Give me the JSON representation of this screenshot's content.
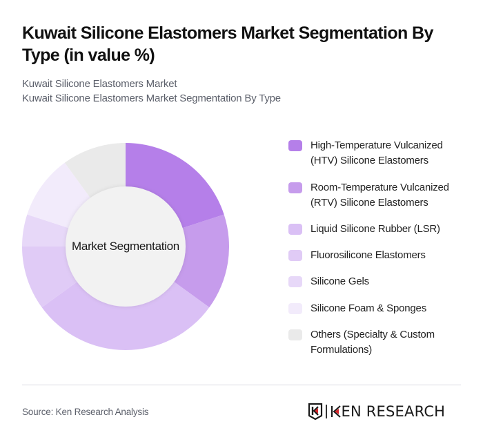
{
  "header": {
    "title": "Kuwait Silicone Elastomers Market Segmentation By Type (in value %)",
    "subtitle_line1": "Kuwait Silicone Elastomers Market",
    "subtitle_line2": "Kuwait Silicone Elastomers Market Segmentation By Type"
  },
  "chart": {
    "center_label": "Market Segmentation"
  },
  "legend": {
    "items": [
      {
        "label": "High-Temperature Vulcanized (HTV) Silicone Elastomers",
        "color": "#B57FE9"
      },
      {
        "label": "Room-Temperature Vulcanized (RTV) Silicone Elastomers",
        "color": "#C69CEC"
      },
      {
        "label": "Liquid Silicone Rubber (LSR)",
        "color": "#DAC0F5"
      },
      {
        "label": "Fluorosilicone Elastomers",
        "color": "#E0CBF6"
      },
      {
        "label": "Silicone Gels",
        "color": "#E7D8F8"
      },
      {
        "label": "Silicone Foam & Sponges",
        "color": "#F2EBFB"
      },
      {
        "label": "Others (Specialty & Custom Formulations)",
        "color": "#EAEAEA"
      }
    ]
  },
  "footer": {
    "source": "Source: Ken Research Analysis",
    "logo_text": "KEN RESEARCH"
  },
  "chart_data": {
    "type": "pie",
    "subtype": "donut",
    "title": "Kuwait Silicone Elastomers Market Segmentation By Type (in value %)",
    "center_label": "Market Segmentation",
    "categories": [
      "High-Temperature Vulcanized (HTV) Silicone Elastomers",
      "Room-Temperature Vulcanized (RTV) Silicone Elastomers",
      "Liquid Silicone Rubber (LSR)",
      "Fluorosilicone Elastomers",
      "Silicone Gels",
      "Silicone Foam & Sponges",
      "Others (Specialty & Custom Formulations)"
    ],
    "values": [
      20,
      15,
      30,
      10,
      5,
      10,
      10
    ],
    "colors": [
      "#B57FE9",
      "#C69CEC",
      "#DAC0F5",
      "#E0CBF6",
      "#E7D8F8",
      "#F2EBFB",
      "#EAEAEA"
    ],
    "unit": "%",
    "start_angle": "12 o'clock, clockwise",
    "legend_position": "right"
  }
}
